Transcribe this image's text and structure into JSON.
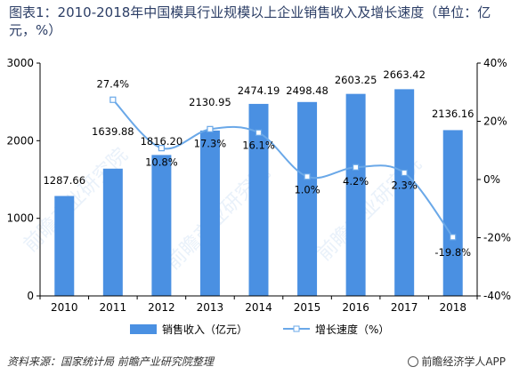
{
  "title": "图表1：2010-2018年中国模具行业规模以上企业销售收入及增长速度（单位：亿元，%）",
  "source": "资料来源：国家统计局 前瞻产业研究院整理",
  "brand": "前瞻经济学人APP",
  "watermark": "前瞻产业研究院",
  "colors": {
    "bar": "#4a90e2",
    "line": "#6aa8e8",
    "axis": "#000000"
  },
  "chart_data": {
    "type": "bar",
    "categories": [
      "2010",
      "2011",
      "2012",
      "2013",
      "2014",
      "2015",
      "2016",
      "2017",
      "2018"
    ],
    "series": [
      {
        "name": "销售收入（亿元）",
        "type": "bar",
        "axis": "left",
        "values": [
          1287.66,
          1639.88,
          1816.2,
          2130.95,
          2474.19,
          2498.48,
          2603.25,
          2663.42,
          2136.16
        ],
        "labels": [
          "1287.66",
          "1639.88",
          "1816.20",
          "2130.95",
          "2474.19",
          "2498.48",
          "2603.25",
          "2663.42",
          "2136.16"
        ]
      },
      {
        "name": "增长速度（%）",
        "type": "line",
        "axis": "right",
        "values": [
          null,
          27.4,
          10.8,
          17.3,
          16.1,
          1.0,
          4.2,
          2.3,
          -19.8
        ],
        "labels": [
          "",
          "27.4%",
          "10.8%",
          "17.3%",
          "16.1%",
          "1.0%",
          "4.2%",
          "2.3%",
          "-19.8%"
        ]
      }
    ],
    "y_left": {
      "ylim": [
        0,
        3000
      ],
      "ticks": [
        "0",
        "1000",
        "2000",
        "3000"
      ],
      "values": [
        0,
        1000,
        2000,
        3000
      ]
    },
    "y_right": {
      "ylim": [
        -40,
        40
      ],
      "ticks": [
        "-40%",
        "-20%",
        "0%",
        "20%",
        "40%"
      ],
      "values": [
        -40,
        -20,
        0,
        20,
        40
      ]
    },
    "legend_position": "bottom",
    "grid": false
  }
}
